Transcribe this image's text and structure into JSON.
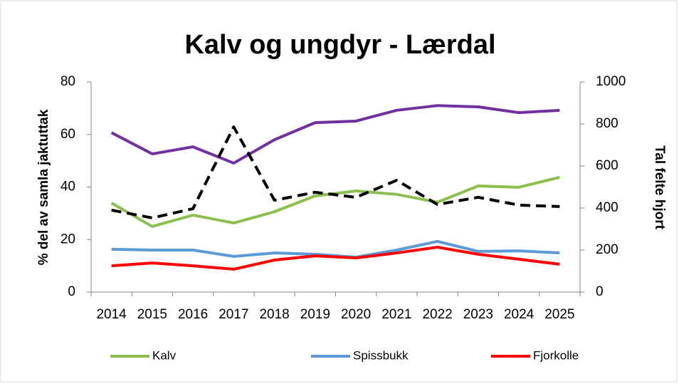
{
  "chart_data": {
    "type": "line",
    "title": "Kalv og ungdyr - Lærdal",
    "ylabel": "% del av samla jaktuttak",
    "y2label": "Tal felte hjort",
    "categories": [
      "2014",
      "2015",
      "2016",
      "2017",
      "2018",
      "2019",
      "2020",
      "2021",
      "2022",
      "2023",
      "2024",
      "2025"
    ],
    "ylim": [
      0,
      80
    ],
    "yticks": [
      0,
      20,
      40,
      60,
      80
    ],
    "y2lim": [
      0,
      1000
    ],
    "y2ticks": [
      0,
      200,
      400,
      600,
      800,
      1000
    ],
    "legend": "bottom",
    "series": [
      {
        "name": "Kalv",
        "color": "#8dbf4e",
        "values": [
          33.9,
          25,
          29.3,
          26.3,
          30.6,
          36.6,
          38.5,
          37.2,
          34.2,
          40.4,
          39.9,
          43.7
        ]
      },
      {
        "name": "Spissbukk",
        "color": "#5b9bd5",
        "values": [
          16.3,
          16,
          16,
          13.6,
          14.9,
          14.4,
          13.3,
          16,
          19.3,
          15.5,
          15.7,
          14.9
        ]
      },
      {
        "name": "Fjorkolle",
        "color": "#ff0000",
        "values": [
          10,
          11.1,
          10,
          8.7,
          12.2,
          13.8,
          13,
          14.9,
          17.1,
          14.4,
          12.5,
          10.6
        ]
      },
      {
        "color": "#7030a0",
        "values": [
          60.7,
          52.6,
          55.3,
          49.1,
          58,
          64.5,
          65.1,
          69.2,
          71,
          70.5,
          68.3,
          69.2
        ]
      },
      {
        "color": "#000000",
        "dashed": true,
        "axis": "y2",
        "values": [
          390,
          353,
          397,
          786,
          437,
          475,
          451,
          532,
          417,
          451,
          414,
          407
        ]
      }
    ]
  }
}
